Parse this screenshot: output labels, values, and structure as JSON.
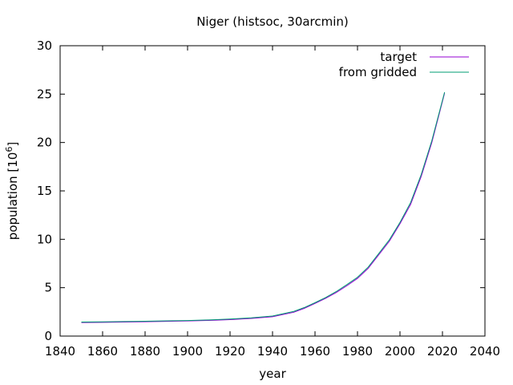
{
  "chart_data": {
    "type": "line",
    "title": "Niger (histsoc, 30arcmin)",
    "xlabel": "year",
    "ylabel_main": "population [10",
    "ylabel_sup": "6",
    "ylabel_end": "]",
    "xlim": [
      1840,
      2040
    ],
    "ylim": [
      0,
      30
    ],
    "xticks": [
      1840,
      1860,
      1880,
      1900,
      1920,
      1940,
      1960,
      1980,
      2000,
      2020,
      2040
    ],
    "yticks": [
      0,
      5,
      10,
      15,
      20,
      25,
      30
    ],
    "grid": false,
    "legend_position": "top-right",
    "series": [
      {
        "name": "target",
        "color": "#9400d3",
        "x": [
          1850,
          1860,
          1870,
          1880,
          1890,
          1900,
          1910,
          1920,
          1930,
          1940,
          1950,
          1955,
          1960,
          1965,
          1970,
          1975,
          1980,
          1985,
          1990,
          1995,
          2000,
          2005,
          2010,
          2015,
          2021
        ],
        "y": [
          1.4,
          1.42,
          1.45,
          1.48,
          1.52,
          1.56,
          1.62,
          1.7,
          1.82,
          2.0,
          2.46,
          2.87,
          3.37,
          3.9,
          4.5,
          5.2,
          5.96,
          6.99,
          8.4,
          9.8,
          11.6,
          13.6,
          16.5,
          20.0,
          25.1
        ]
      },
      {
        "name": "from gridded",
        "color": "#009e73",
        "x": [
          1850,
          1860,
          1870,
          1880,
          1890,
          1900,
          1910,
          1920,
          1930,
          1940,
          1950,
          1955,
          1960,
          1965,
          1970,
          1975,
          1980,
          1985,
          1990,
          1995,
          2000,
          2005,
          2010,
          2015,
          2021
        ],
        "y": [
          1.45,
          1.47,
          1.5,
          1.53,
          1.57,
          1.61,
          1.67,
          1.76,
          1.88,
          2.07,
          2.55,
          2.95,
          3.45,
          3.98,
          4.6,
          5.32,
          6.08,
          7.12,
          8.53,
          9.95,
          11.75,
          13.8,
          16.7,
          20.2,
          25.2
        ]
      }
    ]
  }
}
